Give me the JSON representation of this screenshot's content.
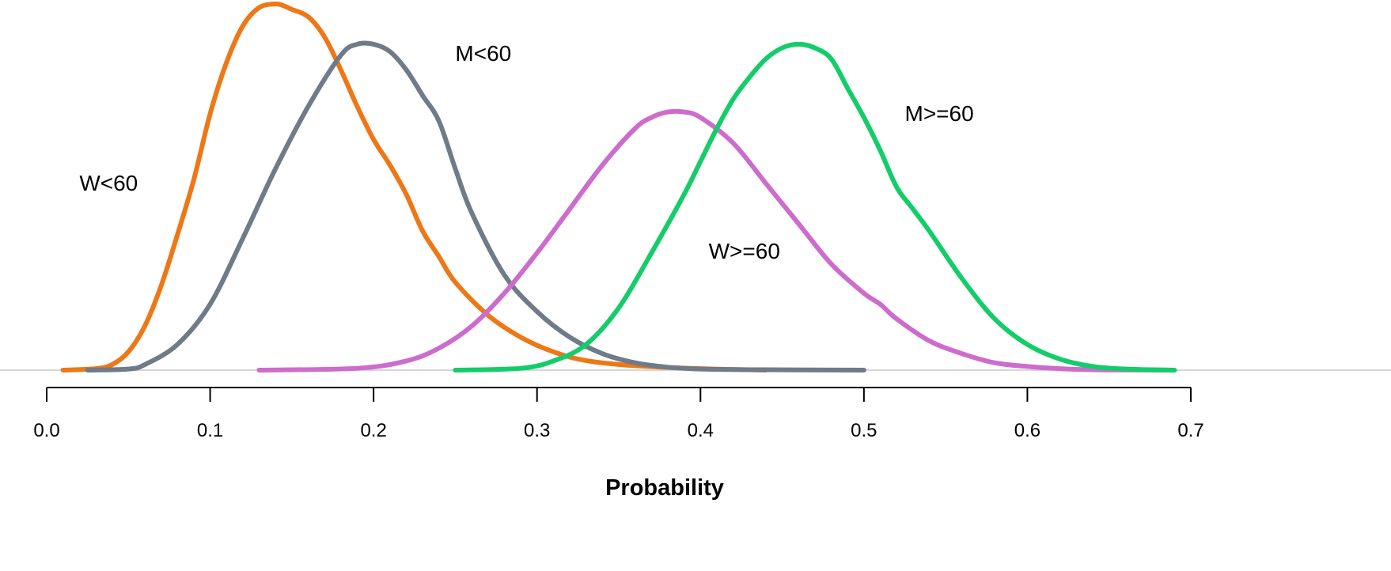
{
  "chart_data": {
    "type": "line",
    "title": "",
    "xlabel": "Probability",
    "ylabel": "",
    "xlim": [
      0.0,
      0.7
    ],
    "ylim": [
      0,
      1.0
    ],
    "x_ticks": [
      0.0,
      0.1,
      0.2,
      0.3,
      0.4,
      0.5,
      0.6,
      0.7
    ],
    "x_tick_labels": [
      "0.0",
      "0.1",
      "0.2",
      "0.3",
      "0.4",
      "0.5",
      "0.6",
      "0.7"
    ],
    "y_axis_visible": false,
    "grid": false,
    "legend": "none",
    "baseline_color": "#c8c8c8",
    "series": [
      {
        "name": "W<60",
        "color": "#ee7716",
        "x": [
          0.01,
          0.03,
          0.04,
          0.05,
          0.06,
          0.07,
          0.08,
          0.09,
          0.1,
          0.11,
          0.12,
          0.13,
          0.14,
          0.145,
          0.15,
          0.16,
          0.17,
          0.18,
          0.19,
          0.2,
          0.21,
          0.22,
          0.23,
          0.24,
          0.25,
          0.27,
          0.29,
          0.31,
          0.33,
          0.36,
          0.4,
          0.44
        ],
        "y": [
          0.0,
          0.004,
          0.015,
          0.05,
          0.12,
          0.23,
          0.37,
          0.52,
          0.7,
          0.84,
          0.94,
          0.99,
          1.0,
          0.995,
          0.985,
          0.965,
          0.91,
          0.82,
          0.72,
          0.63,
          0.56,
          0.48,
          0.38,
          0.31,
          0.24,
          0.15,
          0.09,
          0.05,
          0.026,
          0.012,
          0.004,
          0.0
        ]
      },
      {
        "name": "M<60",
        "color": "#6f7b89",
        "x": [
          0.025,
          0.05,
          0.06,
          0.08,
          0.1,
          0.12,
          0.14,
          0.16,
          0.18,
          0.19,
          0.2,
          0.21,
          0.22,
          0.23,
          0.24,
          0.25,
          0.26,
          0.28,
          0.3,
          0.32,
          0.34,
          0.36,
          0.38,
          0.4,
          0.44,
          0.5
        ],
        "y": [
          0.0,
          0.003,
          0.015,
          0.07,
          0.18,
          0.36,
          0.55,
          0.72,
          0.86,
          0.89,
          0.89,
          0.87,
          0.82,
          0.75,
          0.68,
          0.55,
          0.43,
          0.26,
          0.16,
          0.09,
          0.045,
          0.02,
          0.008,
          0.003,
          0.001,
          0.0
        ]
      },
      {
        "name": "W>=60",
        "color": "#cd6ccd",
        "x": [
          0.13,
          0.19,
          0.22,
          0.24,
          0.26,
          0.28,
          0.3,
          0.32,
          0.34,
          0.36,
          0.37,
          0.38,
          0.39,
          0.4,
          0.42,
          0.44,
          0.46,
          0.48,
          0.5,
          0.51,
          0.52,
          0.54,
          0.56,
          0.58,
          0.6,
          0.62,
          0.64,
          0.66,
          0.69
        ],
        "y": [
          0.0,
          0.005,
          0.025,
          0.06,
          0.12,
          0.21,
          0.32,
          0.44,
          0.56,
          0.66,
          0.69,
          0.705,
          0.705,
          0.69,
          0.62,
          0.51,
          0.4,
          0.29,
          0.21,
          0.18,
          0.14,
          0.08,
          0.045,
          0.02,
          0.01,
          0.004,
          0.001,
          0.0005,
          0.0
        ]
      },
      {
        "name": "M>=60",
        "color": "#14cd6a",
        "x": [
          0.25,
          0.29,
          0.31,
          0.33,
          0.35,
          0.37,
          0.39,
          0.4,
          0.41,
          0.42,
          0.43,
          0.44,
          0.45,
          0.46,
          0.47,
          0.48,
          0.49,
          0.5,
          0.51,
          0.52,
          0.53,
          0.54,
          0.56,
          0.58,
          0.6,
          0.62,
          0.64,
          0.66,
          0.69
        ],
        "y": [
          0.0,
          0.005,
          0.025,
          0.07,
          0.17,
          0.32,
          0.48,
          0.57,
          0.66,
          0.74,
          0.8,
          0.85,
          0.88,
          0.89,
          0.88,
          0.85,
          0.77,
          0.69,
          0.6,
          0.5,
          0.44,
          0.38,
          0.25,
          0.14,
          0.07,
          0.03,
          0.01,
          0.003,
          0.0
        ]
      }
    ],
    "annotations": [
      {
        "text": "W<60",
        "series": "W<60",
        "x": 0.02,
        "y": 0.49
      },
      {
        "text": "M<60",
        "series": "M<60",
        "x": 0.25,
        "y": 0.845
      },
      {
        "text": "W>=60",
        "series": "W>=60",
        "x": 0.405,
        "y": 0.305
      },
      {
        "text": "M>=60",
        "series": "M>=60",
        "x": 0.525,
        "y": 0.68
      }
    ]
  }
}
